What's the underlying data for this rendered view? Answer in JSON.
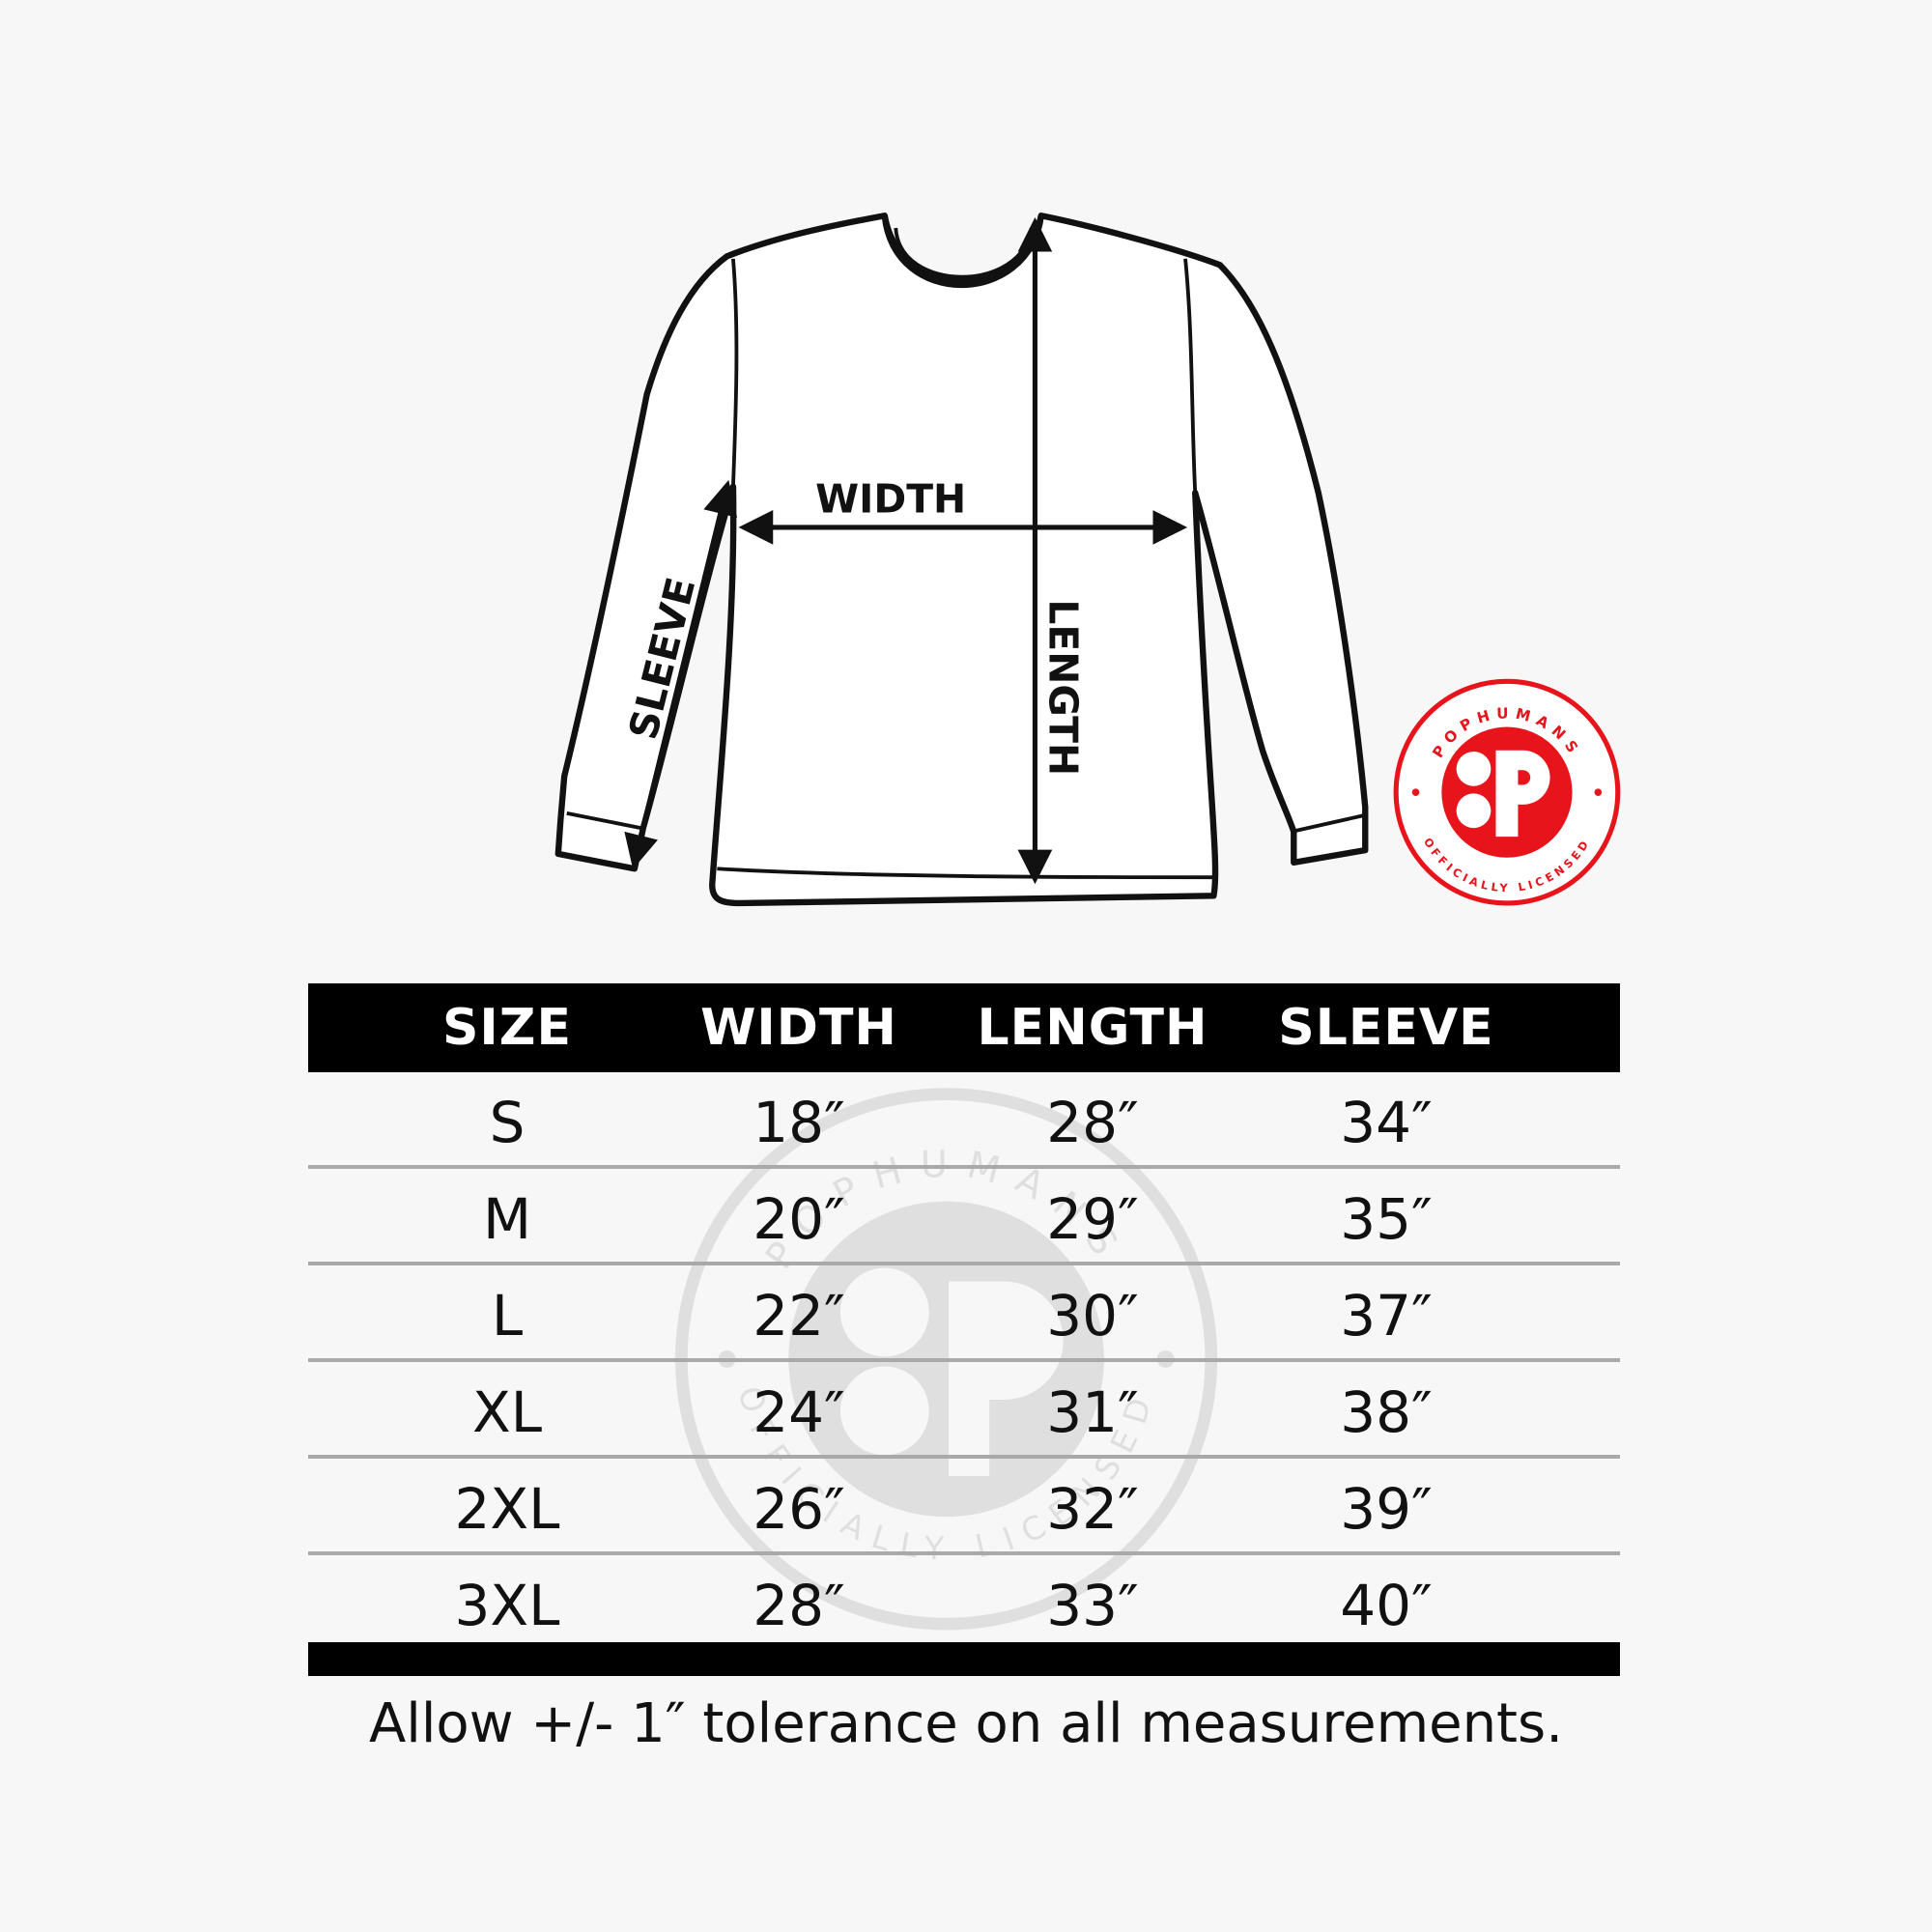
{
  "diagram": {
    "labels": {
      "width": "WIDTH",
      "length": "LENGTH",
      "sleeve": "SLEEVE"
    }
  },
  "logo": {
    "top_text": "POPHUMANS",
    "bottom_text": "OFFICIALLY LICENSED",
    "brand_color": "#e8141b"
  },
  "table": {
    "headers": [
      "SIZE",
      "WIDTH",
      "LENGTH",
      "SLEEVE"
    ],
    "rows": [
      [
        "S",
        "18″",
        "28″",
        "34″"
      ],
      [
        "M",
        "20″",
        "29″",
        "35″"
      ],
      [
        "L",
        "22″",
        "30″",
        "37″"
      ],
      [
        "XL",
        "24″",
        "31″",
        "38″"
      ],
      [
        "2XL",
        "26″",
        "32″",
        "39″"
      ],
      [
        "3XL",
        "28″",
        "33″",
        "40″"
      ]
    ]
  },
  "note": "Allow +/- 1″ tolerance on all measurements."
}
